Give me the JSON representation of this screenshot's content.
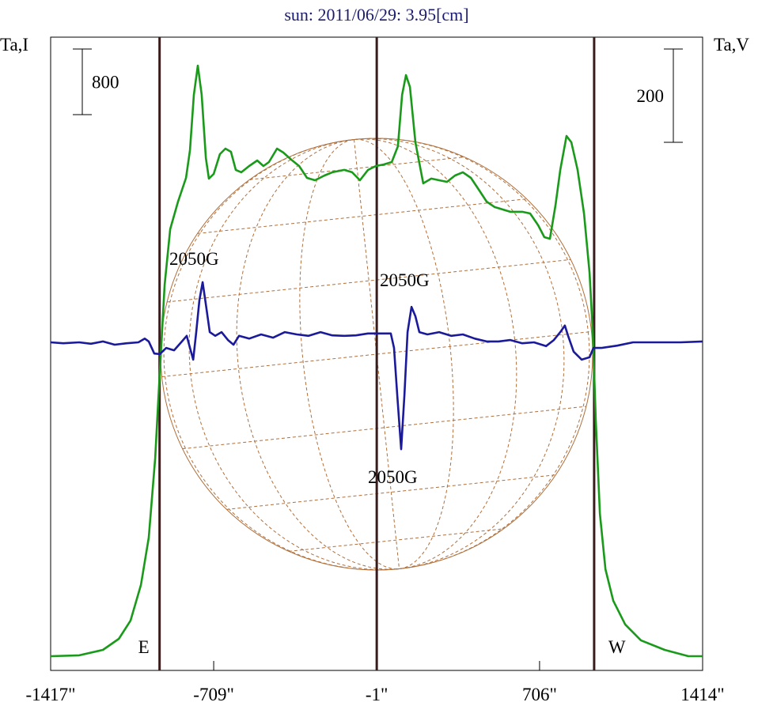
{
  "chart_data": {
    "type": "line",
    "title": "sun: 2011/06/29: 3.95[cm]",
    "ylabel": "Ta,I",
    "y2label": "Ta,V",
    "xlim": [
      -1417,
      1414
    ],
    "xticks": [
      {
        "value": -1417,
        "label": "-1417\""
      },
      {
        "value": -709,
        "label": "-709\""
      },
      {
        "value": -1,
        "label": "-1\""
      },
      {
        "value": 706,
        "label": "706\""
      },
      {
        "value": 1414,
        "label": "1414\""
      }
    ],
    "ylim": [
      -174,
      7548
    ],
    "y2lim": [
      -703,
      654
    ],
    "scale_bars": [
      {
        "value": 800,
        "axis": "y"
      },
      {
        "value": 200,
        "axis": "y2"
      }
    ],
    "markers": [
      {
        "x": -944,
        "label": "E"
      },
      {
        "x": -1
      },
      {
        "x": 943,
        "label": "W"
      }
    ],
    "annotations": [
      "2050G",
      "2050G",
      "2050G"
    ],
    "series": [
      {
        "name": "I",
        "color": "#1a9a1a",
        "x": [
          -1417,
          -1293,
          -1190,
          -1121,
          -1070,
          -1025,
          -991,
          -963,
          -943,
          -922,
          -898,
          -864,
          -829,
          -812,
          -795,
          -778,
          -761,
          -743,
          -730,
          -709,
          -682,
          -658,
          -634,
          -613,
          -589,
          -555,
          -520,
          -493,
          -469,
          -434,
          -407,
          -372,
          -338,
          -304,
          -269,
          -228,
          -194,
          -142,
          -108,
          -74,
          -39,
          -5,
          30,
          64,
          91,
          109,
          126,
          143,
          167,
          201,
          236,
          270,
          304,
          339,
          373,
          408,
          442,
          476,
          511,
          545,
          579,
          631,
          665,
          700,
          727,
          751,
          775,
          796,
          823,
          844,
          871,
          899,
          923,
          937,
          950,
          968,
          992,
          1026,
          1078,
          1146,
          1249,
          1352,
          1414
        ],
        "values": [
          0,
          10,
          77,
          212,
          434,
          868,
          1446,
          2410,
          3470,
          4531,
          5206,
          5543,
          5832,
          6170,
          6844,
          7201,
          6844,
          6073,
          5823,
          5880,
          6121,
          6189,
          6150,
          5929,
          5900,
          5977,
          6044,
          5977,
          6025,
          6189,
          6141,
          6054,
          5977,
          5832,
          5803,
          5861,
          5900,
          5929,
          5900,
          5803,
          5929,
          5977,
          5996,
          6025,
          6218,
          6844,
          7085,
          6941,
          6266,
          5765,
          5823,
          5803,
          5784,
          5861,
          5900,
          5832,
          5688,
          5543,
          5476,
          5447,
          5418,
          5418,
          5398,
          5254,
          5109,
          5090,
          5495,
          5929,
          6343,
          6266,
          5929,
          5398,
          4675,
          3952,
          2892,
          1735,
          1060,
          675,
          386,
          193,
          77,
          0,
          0
        ]
      },
      {
        "name": "V",
        "color": "#1a1a9a",
        "axis": "y2",
        "x": [
          -1417,
          -1362,
          -1293,
          -1242,
          -1190,
          -1139,
          -1087,
          -1036,
          -1008,
          -991,
          -967,
          -943,
          -915,
          -881,
          -847,
          -826,
          -812,
          -798,
          -785,
          -771,
          -757,
          -743,
          -726,
          -702,
          -675,
          -647,
          -623,
          -599,
          -555,
          -503,
          -451,
          -400,
          -348,
          -297,
          -245,
          -194,
          -142,
          -91,
          -39,
          12,
          60,
          74,
          88,
          105,
          119,
          133,
          150,
          167,
          184,
          219,
          270,
          322,
          373,
          425,
          476,
          528,
          579,
          631,
          682,
          734,
          768,
          796,
          816,
          830,
          854,
          889,
          923,
          940,
          974,
          1043,
          1112,
          1215,
          1318,
          1414
        ],
        "values": [
          0,
          -2,
          0,
          -3,
          2,
          -5,
          -2,
          0,
          8,
          2,
          -24,
          -25,
          -12,
          -17,
          2,
          14,
          -12,
          -37,
          22,
          90,
          129,
          81,
          22,
          14,
          22,
          5,
          -5,
          14,
          8,
          17,
          10,
          22,
          17,
          14,
          22,
          15,
          14,
          15,
          19,
          19,
          19,
          -12,
          -114,
          -229,
          -114,
          22,
          76,
          56,
          22,
          17,
          22,
          14,
          17,
          8,
          2,
          2,
          5,
          -2,
          0,
          -8,
          5,
          22,
          36,
          14,
          -20,
          -37,
          -32,
          -12,
          -12,
          -7,
          0,
          0,
          0,
          2
        ]
      }
    ]
  }
}
